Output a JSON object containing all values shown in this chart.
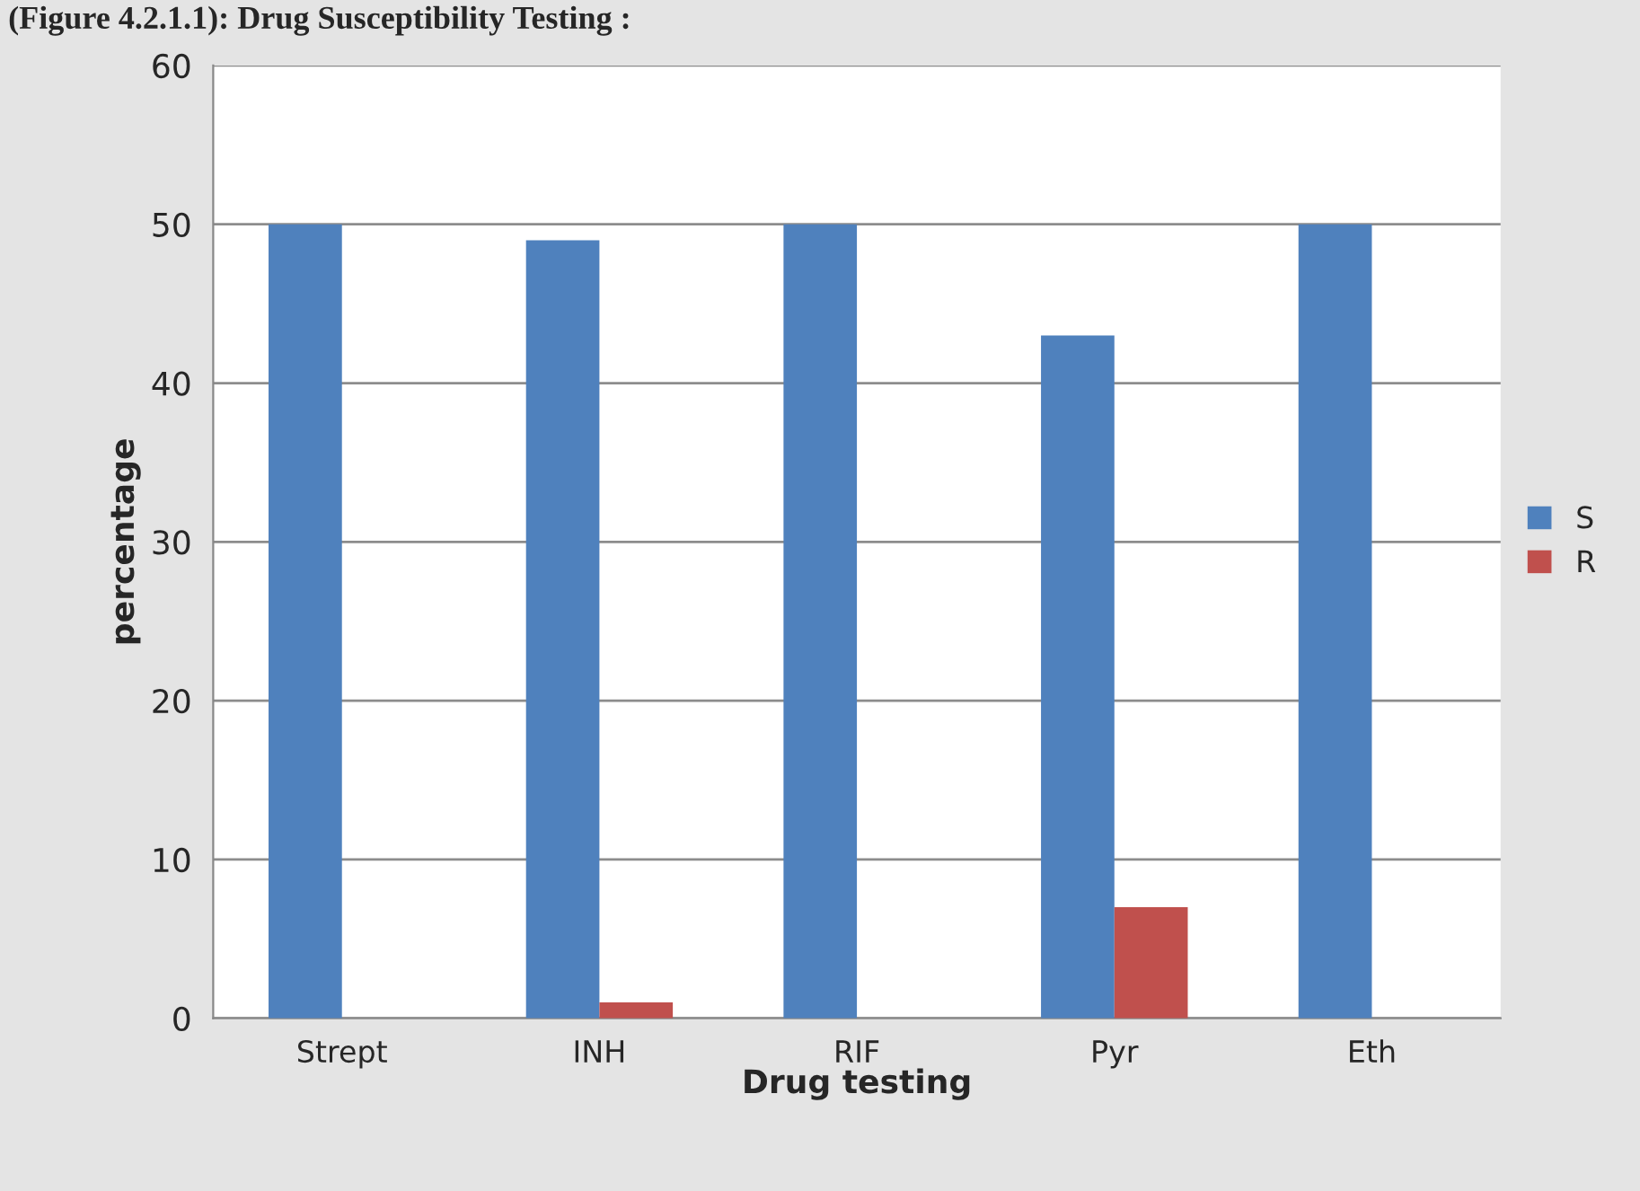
{
  "chart_data": {
    "type": "bar",
    "title": "(Figure 4.2.1.1): Drug Susceptibility Testing :",
    "xlabel": "Drug testing",
    "ylabel": "percentage",
    "categories": [
      "Strept",
      "INH",
      "RIF",
      "Pyr",
      "Eth"
    ],
    "series": [
      {
        "name": "S",
        "color": "#4f81bd",
        "values": [
          50,
          49,
          50,
          43,
          50
        ]
      },
      {
        "name": "R",
        "color": "#c0504d",
        "values": [
          0,
          1,
          0,
          7,
          0
        ]
      }
    ],
    "ylim": [
      0,
      60
    ],
    "yticks": [
      0,
      10,
      20,
      30,
      40,
      50,
      60
    ],
    "grid": "y",
    "legend": "right"
  }
}
